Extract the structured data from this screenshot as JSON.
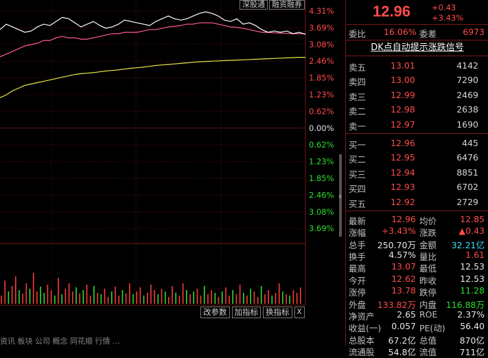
{
  "chart": {
    "top_tabs": [
      "深股通",
      "融资融券"
    ],
    "pct_labels": [
      {
        "text": "4.31%",
        "color": "#ff4b4b"
      },
      {
        "text": "3.69%",
        "color": "#ff4b4b"
      },
      {
        "text": "3.08%",
        "color": "#ff4b4b"
      },
      {
        "text": "2.46%",
        "color": "#ff4b4b"
      },
      {
        "text": "1.85%",
        "color": "#ff4b4b"
      },
      {
        "text": "1.23%",
        "color": "#ff4b4b"
      },
      {
        "text": "0.62%",
        "color": "#ff4b4b"
      },
      {
        "text": "0.00%",
        "color": "#e0e0e0"
      },
      {
        "text": "0.62%",
        "color": "#2ee02e"
      },
      {
        "text": "1.23%",
        "color": "#2ee02e"
      },
      {
        "text": "1.85%",
        "color": "#2ee02e"
      },
      {
        "text": "2.46%",
        "color": "#2ee02e"
      },
      {
        "text": "3.08%",
        "color": "#2ee02e"
      },
      {
        "text": "3.69%",
        "color": "#2ee02e"
      }
    ],
    "price_line": [
      3.6,
      3.8,
      3.7,
      3.6,
      3.5,
      3.55,
      3.7,
      3.8,
      3.75,
      3.9,
      4.05,
      4.0,
      3.85,
      3.7,
      3.8,
      3.9,
      3.75,
      3.65,
      3.7,
      3.8,
      3.95,
      3.9,
      3.85,
      3.8,
      3.75,
      3.9,
      4.0,
      4.1,
      4.0,
      3.95,
      4.0,
      4.1,
      4.2,
      4.25,
      4.2,
      4.1,
      3.95,
      3.9,
      4.0,
      3.8,
      3.85,
      3.75,
      3.6,
      3.5,
      3.55,
      3.5,
      3.55,
      3.45,
      3.5,
      3.43
    ],
    "avg_line": [
      2.6,
      2.7,
      2.8,
      2.9,
      3.0,
      3.05,
      3.1,
      3.2,
      3.2,
      3.3,
      3.35,
      3.3,
      3.3,
      3.25,
      3.25,
      3.3,
      3.35,
      3.4,
      3.45,
      3.45,
      3.5,
      3.5,
      3.5,
      3.55,
      3.6,
      3.6,
      3.65,
      3.7,
      3.72,
      3.75,
      3.8,
      3.8,
      3.85,
      3.85,
      3.85,
      3.8,
      3.75,
      3.7,
      3.68,
      3.65,
      3.6,
      3.55,
      3.5,
      3.5,
      3.48,
      3.47,
      3.46,
      3.45,
      3.45,
      3.45
    ],
    "index_line": [
      1.1,
      1.2,
      1.35,
      1.45,
      1.55,
      1.6,
      1.65,
      1.7,
      1.75,
      1.8,
      1.85,
      1.9,
      1.95,
      1.98,
      2.0,
      2.02,
      2.05,
      2.08,
      2.1,
      2.12,
      2.15,
      2.18,
      2.2,
      2.22,
      2.25,
      2.28,
      2.3,
      2.32,
      2.34,
      2.36,
      2.38,
      2.4,
      2.42,
      2.43,
      2.44,
      2.45,
      2.46,
      2.47,
      2.48,
      2.49,
      2.5,
      2.51,
      2.52,
      2.53,
      2.54,
      2.55,
      2.56,
      2.57,
      2.58,
      2.58
    ],
    "volumes": [
      12,
      34,
      18,
      26,
      40,
      20,
      15,
      30,
      22,
      45,
      18,
      25,
      16,
      28,
      20,
      12,
      38,
      14,
      22,
      30,
      18,
      24,
      15,
      20,
      28,
      12,
      26,
      16,
      14,
      22,
      10,
      18,
      25,
      12,
      20,
      15,
      30,
      14,
      18,
      24,
      12,
      16,
      28,
      20,
      14,
      22,
      18,
      10,
      26,
      16,
      12,
      30,
      20,
      14,
      18,
      22,
      12,
      26,
      14,
      20,
      16,
      10,
      18,
      24,
      12,
      20,
      14,
      28,
      16,
      12,
      22,
      18,
      10,
      26,
      14,
      20,
      12,
      16,
      30,
      18,
      14,
      12,
      20,
      16,
      24
    ],
    "volume_colors_red": [
      1,
      1,
      0,
      1,
      1,
      0,
      1,
      1,
      0,
      1,
      1,
      0,
      0,
      1,
      1,
      0,
      1,
      0,
      1,
      1,
      1,
      0,
      1,
      0,
      1,
      1,
      0,
      1,
      0,
      1,
      1,
      0,
      1,
      1,
      0,
      1,
      1,
      0,
      1,
      1,
      0,
      1,
      1,
      1,
      0,
      1,
      0,
      1,
      1,
      0,
      1,
      1,
      0,
      1,
      0,
      1,
      1,
      0,
      1,
      1,
      0,
      1,
      0,
      1,
      1,
      0,
      1,
      1,
      0,
      1,
      0,
      1,
      1,
      0,
      1,
      1,
      0,
      1,
      1,
      0,
      1,
      0,
      1,
      1,
      1
    ],
    "buttons": [
      "改参数",
      "加指标",
      "换指标"
    ],
    "close_symbol": "X",
    "ticker_text": "资讯 板块 公司 概念 同花顺 行情 …"
  },
  "quote": {
    "price": "12.96",
    "change": "+0.43",
    "change_pct": "+3.43%"
  },
  "ratio": {
    "wb_label": "委比",
    "wb_value": "16.06%",
    "wc_label": "委差",
    "wc_value": "6973"
  },
  "signal_link": "DK点自动提示涨跌信号",
  "asks": [
    {
      "label": "卖五",
      "price": "13.01",
      "vol": "4142"
    },
    {
      "label": "卖四",
      "price": "13.00",
      "vol": "7290"
    },
    {
      "label": "卖三",
      "price": "12.99",
      "vol": "2469"
    },
    {
      "label": "卖二",
      "price": "12.98",
      "vol": "2638"
    },
    {
      "label": "卖一",
      "price": "12.97",
      "vol": "1690"
    }
  ],
  "bids": [
    {
      "label": "买一",
      "price": "12.96",
      "vol": "445"
    },
    {
      "label": "买二",
      "price": "12.95",
      "vol": "6476"
    },
    {
      "label": "买三",
      "price": "12.94",
      "vol": "8851"
    },
    {
      "label": "买四",
      "price": "12.93",
      "vol": "6702"
    },
    {
      "label": "买五",
      "price": "12.92",
      "vol": "2729"
    }
  ],
  "stats": [
    {
      "l1": "最新",
      "v1": "12.96",
      "c1": "red",
      "l2": "均价",
      "v2": "12.85",
      "c2": "red"
    },
    {
      "l1": "涨幅",
      "v1": "+3.43%",
      "c1": "red",
      "l2": "涨跌",
      "v2": "▲0.43",
      "c2": "red"
    },
    {
      "l1": "总手",
      "v1": "250.70万",
      "c1": "wht",
      "l2": "金额",
      "v2": "32.21亿",
      "c2": "cyn"
    },
    {
      "l1": "换手",
      "v1": "4.57%",
      "c1": "wht",
      "l2": "量比",
      "v2": "1.61",
      "c2": "red"
    },
    {
      "l1": "最高",
      "v1": "13.07",
      "c1": "red",
      "l2": "最低",
      "v2": "12.53",
      "c2": "wht"
    },
    {
      "l1": "今开",
      "v1": "12.62",
      "c1": "red",
      "l2": "昨收",
      "v2": "12.53",
      "c2": "wht"
    },
    {
      "l1": "涨停",
      "v1": "13.78",
      "c1": "red",
      "l2": "跌停",
      "v2": "11.28",
      "c2": "grn"
    },
    {
      "l1": "外盘",
      "v1": "133.82万",
      "c1": "red",
      "l2": "内盘",
      "v2": "116.88万",
      "c2": "grn"
    },
    {
      "l1": "净资产",
      "v1": "2.65",
      "c1": "wht",
      "l2": "ROE",
      "v2": "2.37%",
      "c2": "wht"
    },
    {
      "l1": "收益(一)",
      "v1": "0.057",
      "c1": "wht",
      "l2": "PE(动)",
      "v2": "56.40",
      "c2": "wht"
    },
    {
      "l1": "总股本",
      "v1": "67.2亿",
      "c1": "wht",
      "l2": "总值",
      "v2": "870亿",
      "c2": "wht"
    },
    {
      "l1": "流通股",
      "v1": "54.8亿",
      "c1": "wht",
      "l2": "流值",
      "v2": "711亿",
      "c2": "wht"
    }
  ]
}
